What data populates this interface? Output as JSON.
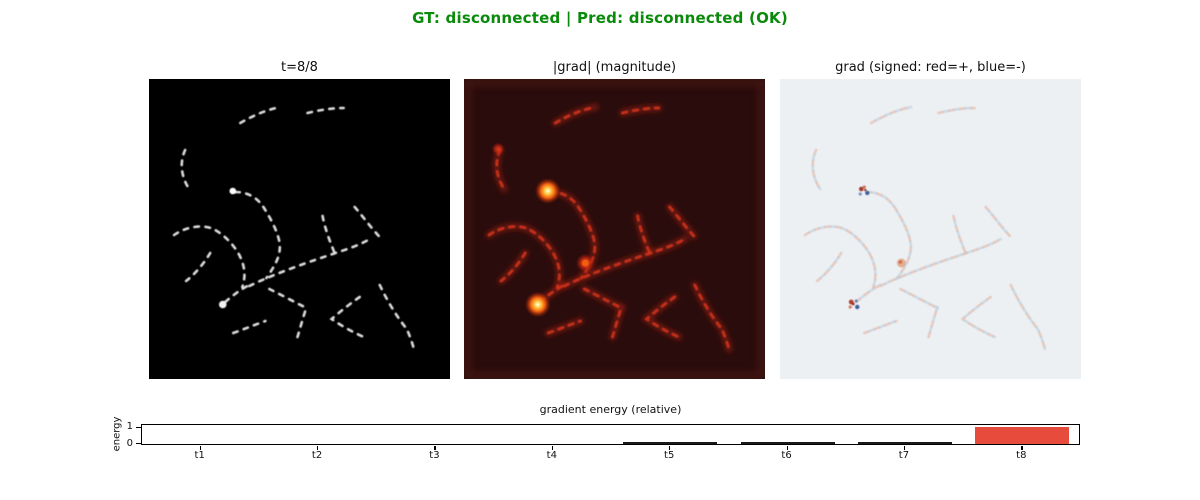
{
  "figure_title": {
    "text": "GT: disconnected | Pred: disconnected (OK)",
    "color": "#0a8a0a"
  },
  "panels": [
    {
      "title": "t=8/8",
      "kind": "ground-truth-mask",
      "background": "#000000",
      "trail_color": "#e6e6e6"
    },
    {
      "title": "|grad| (magnitude)",
      "kind": "gradient-magnitude-heatmap",
      "background": "#2a0c0c",
      "trail_color": "#d23418",
      "hotspot_colors": [
        "#ffffff",
        "#ffd24a",
        "#f2600e"
      ]
    },
    {
      "title": "grad (signed: red=+, blue=-)",
      "kind": "signed-gradient-map",
      "background": "#edf0f3",
      "positive_color": "#a33b2c",
      "negative_color": "#3a5e9e"
    }
  ],
  "chart_data": {
    "type": "bar",
    "title": "gradient energy (relative)",
    "xlabel": "",
    "ylabel": "energy",
    "categories": [
      "t1",
      "t2",
      "t3",
      "t4",
      "t5",
      "t6",
      "t7",
      "t8"
    ],
    "values": [
      0,
      0,
      0,
      0,
      0.06,
      0.06,
      0.05,
      1.0
    ],
    "yticks": [
      0,
      1
    ],
    "ylim": [
      0,
      1.15
    ],
    "grid": false,
    "legend_position": "none",
    "highlight_index": 7,
    "bar_color_default": "#1a1a1a",
    "bar_color_highlight": "#e64b3c"
  }
}
